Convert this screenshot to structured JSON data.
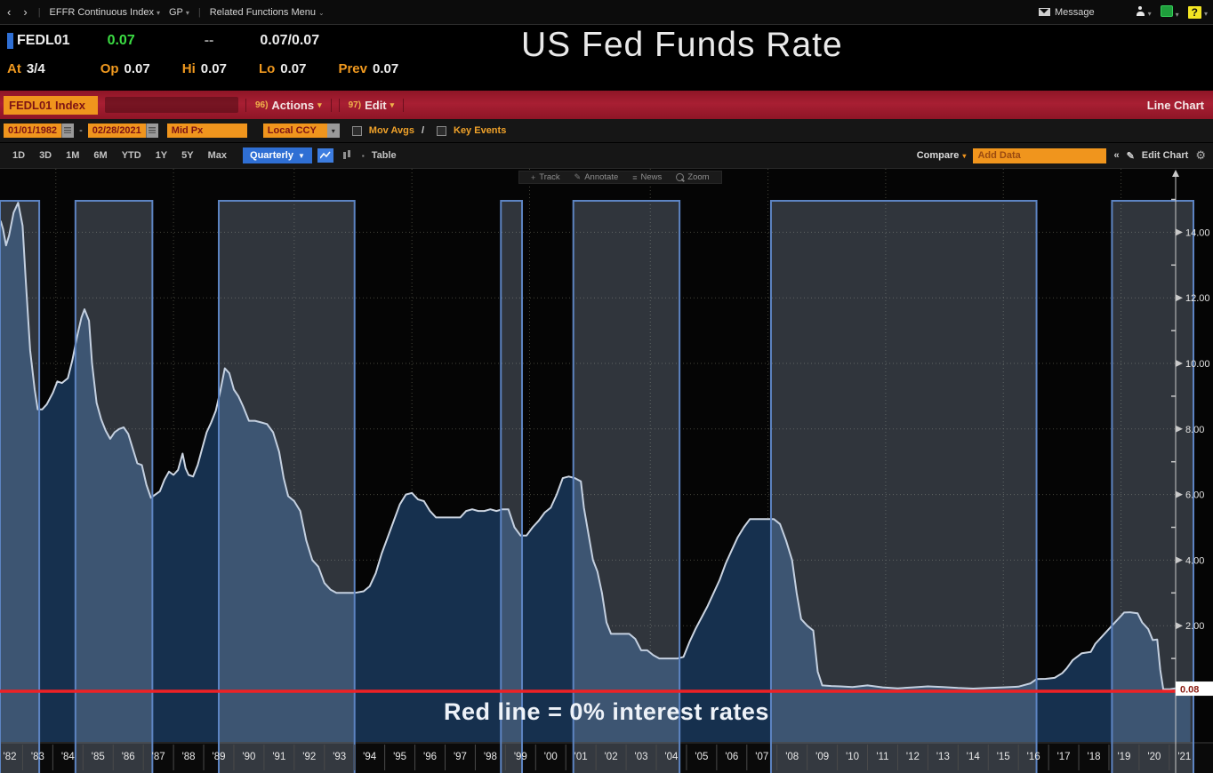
{
  "topbar": {
    "back": "‹",
    "forward": "›",
    "security_menu": "EFFR Continuous Index",
    "gp": "GP",
    "related": "Related Functions Menu",
    "message": "Message",
    "help": "?"
  },
  "quote": {
    "ticker": "FEDL01",
    "last": "0.07",
    "change": "--",
    "bid_ask": "0.07/0.07",
    "at_label": "At",
    "at_value": "3/4",
    "op_label": "Op",
    "op": "0.07",
    "hi_label": "Hi",
    "hi": "0.07",
    "lo_label": "Lo",
    "lo": "0.07",
    "prev_label": "Prev",
    "prev": "0.07"
  },
  "title": "US Fed Funds Rate",
  "redbar": {
    "security": "FEDL01 Index",
    "actions_num": "96)",
    "actions": "Actions",
    "edit_num": "97)",
    "edit": "Edit",
    "chart_type": "Line Chart"
  },
  "settings": {
    "date_from": "01/01/1982",
    "dash": "-",
    "date_to": "02/28/2021",
    "price_field": "Mid Px",
    "currency": "Local CCY",
    "mov_avgs": "Mov Avgs",
    "key_events": "Key Events"
  },
  "period": {
    "ranges": [
      "1D",
      "3D",
      "1M",
      "6M",
      "YTD",
      "1Y",
      "5Y",
      "Max"
    ],
    "frequency": "Quarterly",
    "table": "Table",
    "compare": "Compare",
    "add_data": "Add Data",
    "collapse": "«",
    "edit_chart": "Edit Chart"
  },
  "chart_toolbar": {
    "track": "Track",
    "annotate": "Annotate",
    "news": "News",
    "zoom": "Zoom"
  },
  "annotation": "Red line = 0% interest rates",
  "chart_data": {
    "type": "area",
    "title": "US Fed Funds Rate",
    "x_axis": {
      "min": 1981.75,
      "max": 2021.3,
      "label_start_year": 1982,
      "labels": [
        "'82",
        "'83",
        "'84",
        "'85",
        "'86",
        "'87",
        "'88",
        "'89",
        "'90",
        "'91",
        "'92",
        "'93",
        "'94",
        "'95",
        "'96",
        "'97",
        "'98",
        "'99",
        "'00",
        "'01",
        "'02",
        "'03",
        "'04",
        "'05",
        "'06",
        "'07",
        "'08",
        "'09",
        "'10",
        "'11",
        "'12",
        "'13",
        "'14",
        "'15",
        "'16",
        "'17",
        "'18",
        "'19",
        "'20",
        "'21"
      ]
    },
    "y_axis": {
      "min": -2.3,
      "max": 16.0,
      "major_ticks": [
        {
          "value": 14,
          "label": "14.00"
        },
        {
          "value": 12,
          "label": "12.00"
        },
        {
          "value": 10,
          "label": "10.00"
        },
        {
          "value": 8,
          "label": "8.00"
        },
        {
          "value": 6,
          "label": "6.00"
        },
        {
          "value": 4,
          "label": "4.00"
        },
        {
          "value": 2,
          "label": "2.00"
        }
      ],
      "minor_ticks": [
        15,
        13,
        11,
        9,
        7,
        5,
        3,
        1
      ],
      "last_price": {
        "value": 0.08,
        "label": "0.08"
      }
    },
    "zero_line_value": 0,
    "v_gridline_years": [
      1983.6,
      1987.5,
      1991.5,
      1995.4,
      1999.3,
      2003.3,
      2007.2,
      2011.1,
      2015.0,
      2018.9
    ],
    "bands": [
      {
        "from": 1981.75,
        "to": 1983.05
      },
      {
        "from": 1984.25,
        "to": 1986.8
      },
      {
        "from": 1989.0,
        "to": 1993.5
      },
      {
        "from": 1998.35,
        "to": 1999.05
      },
      {
        "from": 2000.75,
        "to": 2004.27
      },
      {
        "from": 2007.3,
        "to": 2016.1
      },
      {
        "from": 2018.6,
        "to": 2021.3
      }
    ],
    "series": [
      {
        "name": "US Fed Funds Rate",
        "points": [
          [
            1981.77,
            14.35
          ],
          [
            1981.85,
            14.1
          ],
          [
            1981.95,
            13.6
          ],
          [
            1982.05,
            13.9
          ],
          [
            1982.2,
            14.6
          ],
          [
            1982.35,
            14.9
          ],
          [
            1982.5,
            14.2
          ],
          [
            1982.6,
            12.6
          ],
          [
            1982.75,
            10.4
          ],
          [
            1982.9,
            9.2
          ],
          [
            1983.0,
            8.6
          ],
          [
            1983.15,
            8.6
          ],
          [
            1983.3,
            8.75
          ],
          [
            1983.5,
            9.1
          ],
          [
            1983.65,
            9.45
          ],
          [
            1983.8,
            9.4
          ],
          [
            1984.0,
            9.55
          ],
          [
            1984.15,
            10.1
          ],
          [
            1984.3,
            10.8
          ],
          [
            1984.45,
            11.4
          ],
          [
            1984.55,
            11.65
          ],
          [
            1984.7,
            11.3
          ],
          [
            1984.8,
            10.0
          ],
          [
            1984.95,
            8.8
          ],
          [
            1985.1,
            8.3
          ],
          [
            1985.25,
            7.95
          ],
          [
            1985.4,
            7.7
          ],
          [
            1985.55,
            7.9
          ],
          [
            1985.7,
            8.0
          ],
          [
            1985.85,
            8.05
          ],
          [
            1986.0,
            7.85
          ],
          [
            1986.15,
            7.4
          ],
          [
            1986.3,
            6.95
          ],
          [
            1986.45,
            6.9
          ],
          [
            1986.6,
            6.3
          ],
          [
            1986.75,
            5.9
          ],
          [
            1986.9,
            6.0
          ],
          [
            1987.05,
            6.1
          ],
          [
            1987.2,
            6.45
          ],
          [
            1987.35,
            6.7
          ],
          [
            1987.5,
            6.6
          ],
          [
            1987.65,
            6.75
          ],
          [
            1987.8,
            7.25
          ],
          [
            1987.9,
            6.8
          ],
          [
            1988.0,
            6.6
          ],
          [
            1988.15,
            6.55
          ],
          [
            1988.3,
            6.9
          ],
          [
            1988.45,
            7.4
          ],
          [
            1988.6,
            7.9
          ],
          [
            1988.75,
            8.2
          ],
          [
            1988.9,
            8.55
          ],
          [
            1989.05,
            9.15
          ],
          [
            1989.2,
            9.85
          ],
          [
            1989.35,
            9.7
          ],
          [
            1989.5,
            9.2
          ],
          [
            1989.65,
            9.0
          ],
          [
            1989.8,
            8.7
          ],
          [
            1990.0,
            8.25
          ],
          [
            1990.2,
            8.25
          ],
          [
            1990.4,
            8.2
          ],
          [
            1990.6,
            8.15
          ],
          [
            1990.8,
            7.9
          ],
          [
            1991.0,
            7.3
          ],
          [
            1991.15,
            6.5
          ],
          [
            1991.3,
            5.95
          ],
          [
            1991.5,
            5.8
          ],
          [
            1991.7,
            5.5
          ],
          [
            1991.9,
            4.6
          ],
          [
            1992.1,
            4.0
          ],
          [
            1992.3,
            3.8
          ],
          [
            1992.5,
            3.3
          ],
          [
            1992.7,
            3.1
          ],
          [
            1992.9,
            3.0
          ],
          [
            1993.2,
            3.0
          ],
          [
            1993.5,
            3.0
          ],
          [
            1993.8,
            3.05
          ],
          [
            1994.0,
            3.2
          ],
          [
            1994.2,
            3.6
          ],
          [
            1994.4,
            4.2
          ],
          [
            1994.6,
            4.7
          ],
          [
            1994.8,
            5.2
          ],
          [
            1995.0,
            5.7
          ],
          [
            1995.2,
            6.0
          ],
          [
            1995.4,
            6.05
          ],
          [
            1995.6,
            5.85
          ],
          [
            1995.8,
            5.8
          ],
          [
            1996.0,
            5.5
          ],
          [
            1996.2,
            5.3
          ],
          [
            1996.4,
            5.3
          ],
          [
            1996.6,
            5.3
          ],
          [
            1996.8,
            5.3
          ],
          [
            1997.0,
            5.3
          ],
          [
            1997.2,
            5.5
          ],
          [
            1997.4,
            5.55
          ],
          [
            1997.6,
            5.5
          ],
          [
            1997.8,
            5.5
          ],
          [
            1998.0,
            5.55
          ],
          [
            1998.2,
            5.5
          ],
          [
            1998.4,
            5.55
          ],
          [
            1998.6,
            5.55
          ],
          [
            1998.8,
            5.0
          ],
          [
            1999.0,
            4.75
          ],
          [
            1999.2,
            4.75
          ],
          [
            1999.4,
            5.0
          ],
          [
            1999.6,
            5.2
          ],
          [
            1999.8,
            5.45
          ],
          [
            2000.0,
            5.6
          ],
          [
            2000.2,
            6.0
          ],
          [
            2000.4,
            6.5
          ],
          [
            2000.6,
            6.55
          ],
          [
            2000.8,
            6.5
          ],
          [
            2001.0,
            6.4
          ],
          [
            2001.1,
            5.6
          ],
          [
            2001.25,
            4.8
          ],
          [
            2001.4,
            4.0
          ],
          [
            2001.55,
            3.65
          ],
          [
            2001.7,
            3.0
          ],
          [
            2001.85,
            2.1
          ],
          [
            2002.0,
            1.75
          ],
          [
            2002.2,
            1.75
          ],
          [
            2002.4,
            1.75
          ],
          [
            2002.6,
            1.75
          ],
          [
            2002.8,
            1.6
          ],
          [
            2003.0,
            1.25
          ],
          [
            2003.2,
            1.25
          ],
          [
            2003.4,
            1.1
          ],
          [
            2003.6,
            1.0
          ],
          [
            2003.8,
            1.0
          ],
          [
            2004.0,
            1.0
          ],
          [
            2004.2,
            1.0
          ],
          [
            2004.4,
            1.05
          ],
          [
            2004.6,
            1.5
          ],
          [
            2004.8,
            1.9
          ],
          [
            2005.0,
            2.25
          ],
          [
            2005.2,
            2.6
          ],
          [
            2005.4,
            3.0
          ],
          [
            2005.6,
            3.4
          ],
          [
            2005.8,
            3.9
          ],
          [
            2006.0,
            4.3
          ],
          [
            2006.2,
            4.7
          ],
          [
            2006.4,
            5.0
          ],
          [
            2006.6,
            5.25
          ],
          [
            2006.8,
            5.25
          ],
          [
            2007.0,
            5.25
          ],
          [
            2007.2,
            5.25
          ],
          [
            2007.4,
            5.25
          ],
          [
            2007.6,
            5.1
          ],
          [
            2007.8,
            4.6
          ],
          [
            2008.0,
            4.0
          ],
          [
            2008.15,
            3.0
          ],
          [
            2008.3,
            2.2
          ],
          [
            2008.5,
            2.0
          ],
          [
            2008.7,
            1.85
          ],
          [
            2008.85,
            0.6
          ],
          [
            2009.0,
            0.18
          ],
          [
            2009.3,
            0.16
          ],
          [
            2009.6,
            0.15
          ],
          [
            2010.0,
            0.13
          ],
          [
            2010.5,
            0.18
          ],
          [
            2011.0,
            0.12
          ],
          [
            2011.5,
            0.09
          ],
          [
            2012.0,
            0.12
          ],
          [
            2012.5,
            0.15
          ],
          [
            2013.0,
            0.13
          ],
          [
            2013.5,
            0.1
          ],
          [
            2014.0,
            0.08
          ],
          [
            2014.5,
            0.1
          ],
          [
            2015.0,
            0.12
          ],
          [
            2015.5,
            0.14
          ],
          [
            2015.9,
            0.24
          ],
          [
            2016.1,
            0.37
          ],
          [
            2016.4,
            0.38
          ],
          [
            2016.7,
            0.41
          ],
          [
            2016.95,
            0.55
          ],
          [
            2017.1,
            0.7
          ],
          [
            2017.3,
            0.95
          ],
          [
            2017.6,
            1.16
          ],
          [
            2017.9,
            1.2
          ],
          [
            2018.05,
            1.45
          ],
          [
            2018.3,
            1.7
          ],
          [
            2018.55,
            1.95
          ],
          [
            2018.8,
            2.2
          ],
          [
            2019.0,
            2.4
          ],
          [
            2019.2,
            2.41
          ],
          [
            2019.45,
            2.38
          ],
          [
            2019.6,
            2.1
          ],
          [
            2019.8,
            1.9
          ],
          [
            2019.95,
            1.56
          ],
          [
            2020.1,
            1.58
          ],
          [
            2020.2,
            0.65
          ],
          [
            2020.3,
            0.06
          ],
          [
            2020.5,
            0.06
          ],
          [
            2020.7,
            0.09
          ],
          [
            2020.9,
            0.09
          ],
          [
            2021.05,
            0.08
          ],
          [
            2021.2,
            0.07
          ]
        ]
      }
    ],
    "colors": {
      "line": "#ccd5e2",
      "fill": "#16304e",
      "band_fill": "rgba(175,195,222,0.26)",
      "band_border": "#5d84c2",
      "zero_line": "#ee2125",
      "grid": "#45453b",
      "axis": "#c9c9c9",
      "tick_label": "#e2e2e2",
      "x_label": "#e8e8e8",
      "strip_bg": "#0a0a0a",
      "strip_sep": "#4a4a4a",
      "last_price_bg": "#ffffff",
      "last_price_text": "#8b1a10"
    }
  }
}
